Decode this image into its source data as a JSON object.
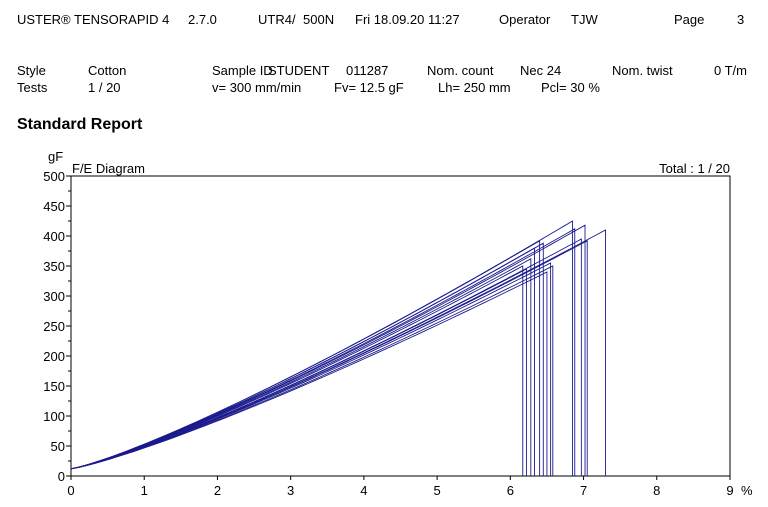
{
  "header": {
    "instrument": "USTER® TENSORAPID 4",
    "version": "2.7.0",
    "device": "UTR4/",
    "load_cell": "500N",
    "datetime": "Fri 18.09.20 11:27",
    "operator_label": "Operator",
    "operator": "TJW",
    "page_label": "Page",
    "page": "3"
  },
  "info": {
    "style_label": "Style",
    "style": "Cotton",
    "sample_id_label": "Sample ID",
    "sample_id": "STUDENT",
    "sample_number": "011287",
    "nom_count_label": "Nom. count",
    "nom_count": "Nec 24",
    "nom_twist_label": "Nom. twist",
    "nom_twist": "0 T/m",
    "tests_label": "Tests",
    "tests": "1 / 20",
    "speed": "v= 300 mm/min",
    "pretension": "Fv= 12.5 gF",
    "length": "Lh= 250 mm",
    "pcl": "Pcl= 30 %"
  },
  "report_title": "Standard Report",
  "chart_data": {
    "type": "line",
    "title": "F/E Diagram",
    "total_label": "Total : 1 / 20",
    "xlabel": "%",
    "ylabel": "gF",
    "xlim": [
      0,
      9
    ],
    "ylim": [
      0,
      500
    ],
    "xticks": [
      0,
      1,
      2,
      3,
      4,
      5,
      6,
      7,
      8,
      9
    ],
    "yticks": [
      0,
      50,
      100,
      150,
      200,
      250,
      300,
      350,
      400,
      450,
      500
    ],
    "grid": false,
    "line_color": "#1a1a8c",
    "start_force": 12,
    "series": [
      {
        "break_elong": 6.17,
        "break_force": 350
      },
      {
        "break_elong": 6.22,
        "break_force": 345
      },
      {
        "break_elong": 6.28,
        "break_force": 362
      },
      {
        "break_elong": 6.33,
        "break_force": 380
      },
      {
        "break_elong": 6.4,
        "break_force": 392
      },
      {
        "break_elong": 6.45,
        "break_force": 388
      },
      {
        "break_elong": 6.5,
        "break_force": 340
      },
      {
        "break_elong": 6.55,
        "break_force": 355
      },
      {
        "break_elong": 6.58,
        "break_force": 350
      },
      {
        "break_elong": 6.85,
        "break_force": 425
      },
      {
        "break_elong": 6.88,
        "break_force": 412
      },
      {
        "break_elong": 6.97,
        "break_force": 395
      },
      {
        "break_elong": 7.02,
        "break_force": 418
      },
      {
        "break_elong": 7.05,
        "break_force": 392
      },
      {
        "break_elong": 7.3,
        "break_force": 410
      }
    ]
  }
}
